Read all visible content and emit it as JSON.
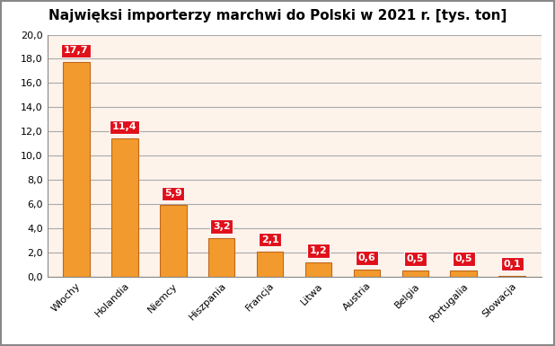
{
  "chart_data": {
    "type": "bar",
    "title": "Najwięksi importerzy marchwi do Polski w 2021 r. [tys. ton]",
    "categories": [
      "Włochy",
      "Holandia",
      "Niemcy",
      "Hiszpania",
      "Francja",
      "Litwa",
      "Austria",
      "Belgia",
      "Portugalia",
      "Słowacja"
    ],
    "values": [
      17.7,
      11.4,
      5.9,
      3.2,
      2.1,
      1.2,
      0.6,
      0.5,
      0.5,
      0.1
    ],
    "value_labels": [
      "17,7",
      "11,4",
      "5,9",
      "3,2",
      "2,1",
      "1,2",
      "0,6",
      "0,5",
      "0,5",
      "0,1"
    ],
    "color": "#f39a2e",
    "ylim": [
      0,
      20
    ],
    "yticks": [
      {
        "value": 0,
        "label": "0,0"
      },
      {
        "value": 2,
        "label": "2,0"
      },
      {
        "value": 4,
        "label": "4,0"
      },
      {
        "value": 6,
        "label": "6,0"
      },
      {
        "value": 8,
        "label": "8,0"
      },
      {
        "value": 10,
        "label": "10,0"
      },
      {
        "value": 12,
        "label": "12,0"
      },
      {
        "value": 14,
        "label": "14,0"
      },
      {
        "value": 16,
        "label": "16,0"
      },
      {
        "value": 18,
        "label": "18,0"
      },
      {
        "value": 20,
        "label": "20,0"
      }
    ],
    "grid": true,
    "data_labels": true
  }
}
